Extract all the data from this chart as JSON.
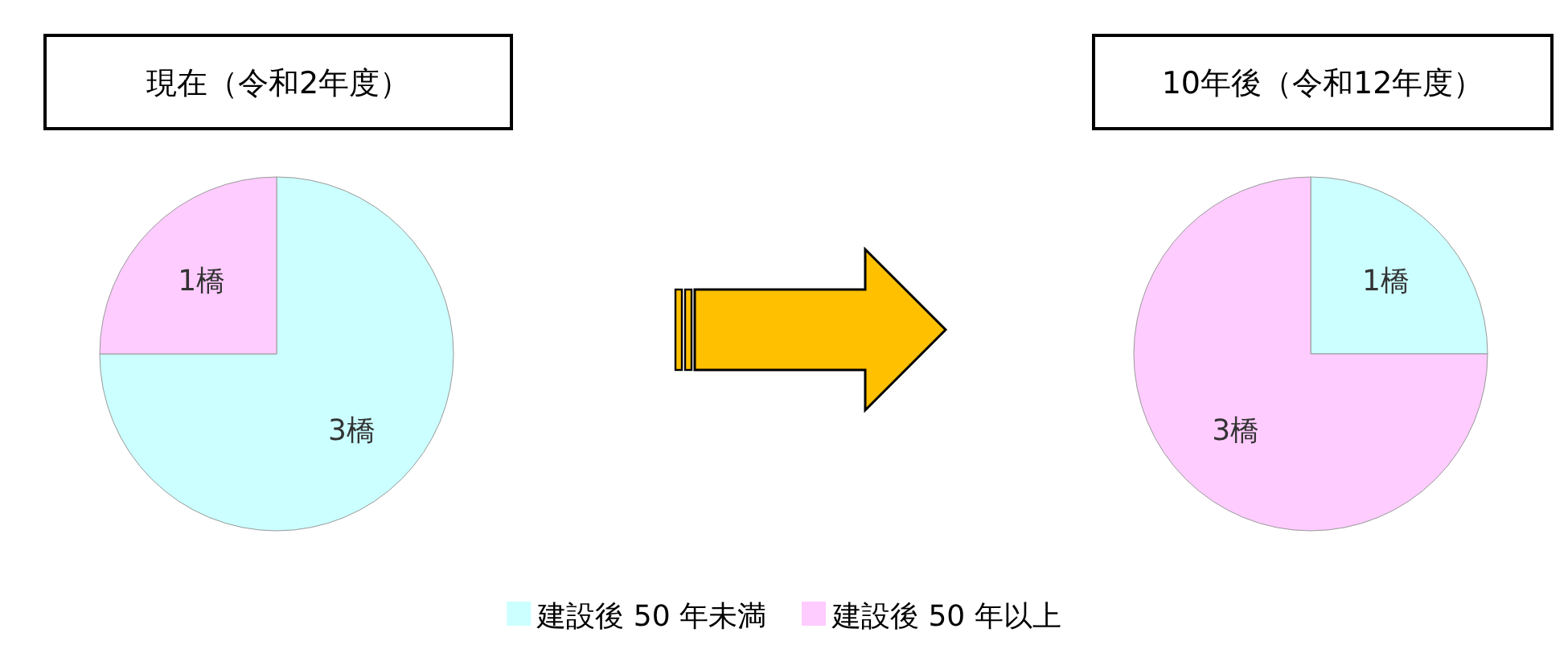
{
  "chart_data": [
    {
      "type": "pie",
      "title": "現在（令和2年度）",
      "categories": [
        "建設後 50 年未満",
        "建設後 50 年以上"
      ],
      "values": [
        3,
        1
      ],
      "colors": [
        "#ccffff",
        "#ffccff"
      ],
      "value_labels": [
        "3橋",
        "1橋"
      ],
      "legend": "bottom"
    },
    {
      "type": "pie",
      "title": "10年後（令和12年度）",
      "categories": [
        null,
        null
      ],
      "values": [
        1,
        3
      ],
      "colors": [
        "#ccffff",
        "#ffccff"
      ],
      "value_labels": [
        "1橋",
        "3橋"
      ]
    }
  ]
}
